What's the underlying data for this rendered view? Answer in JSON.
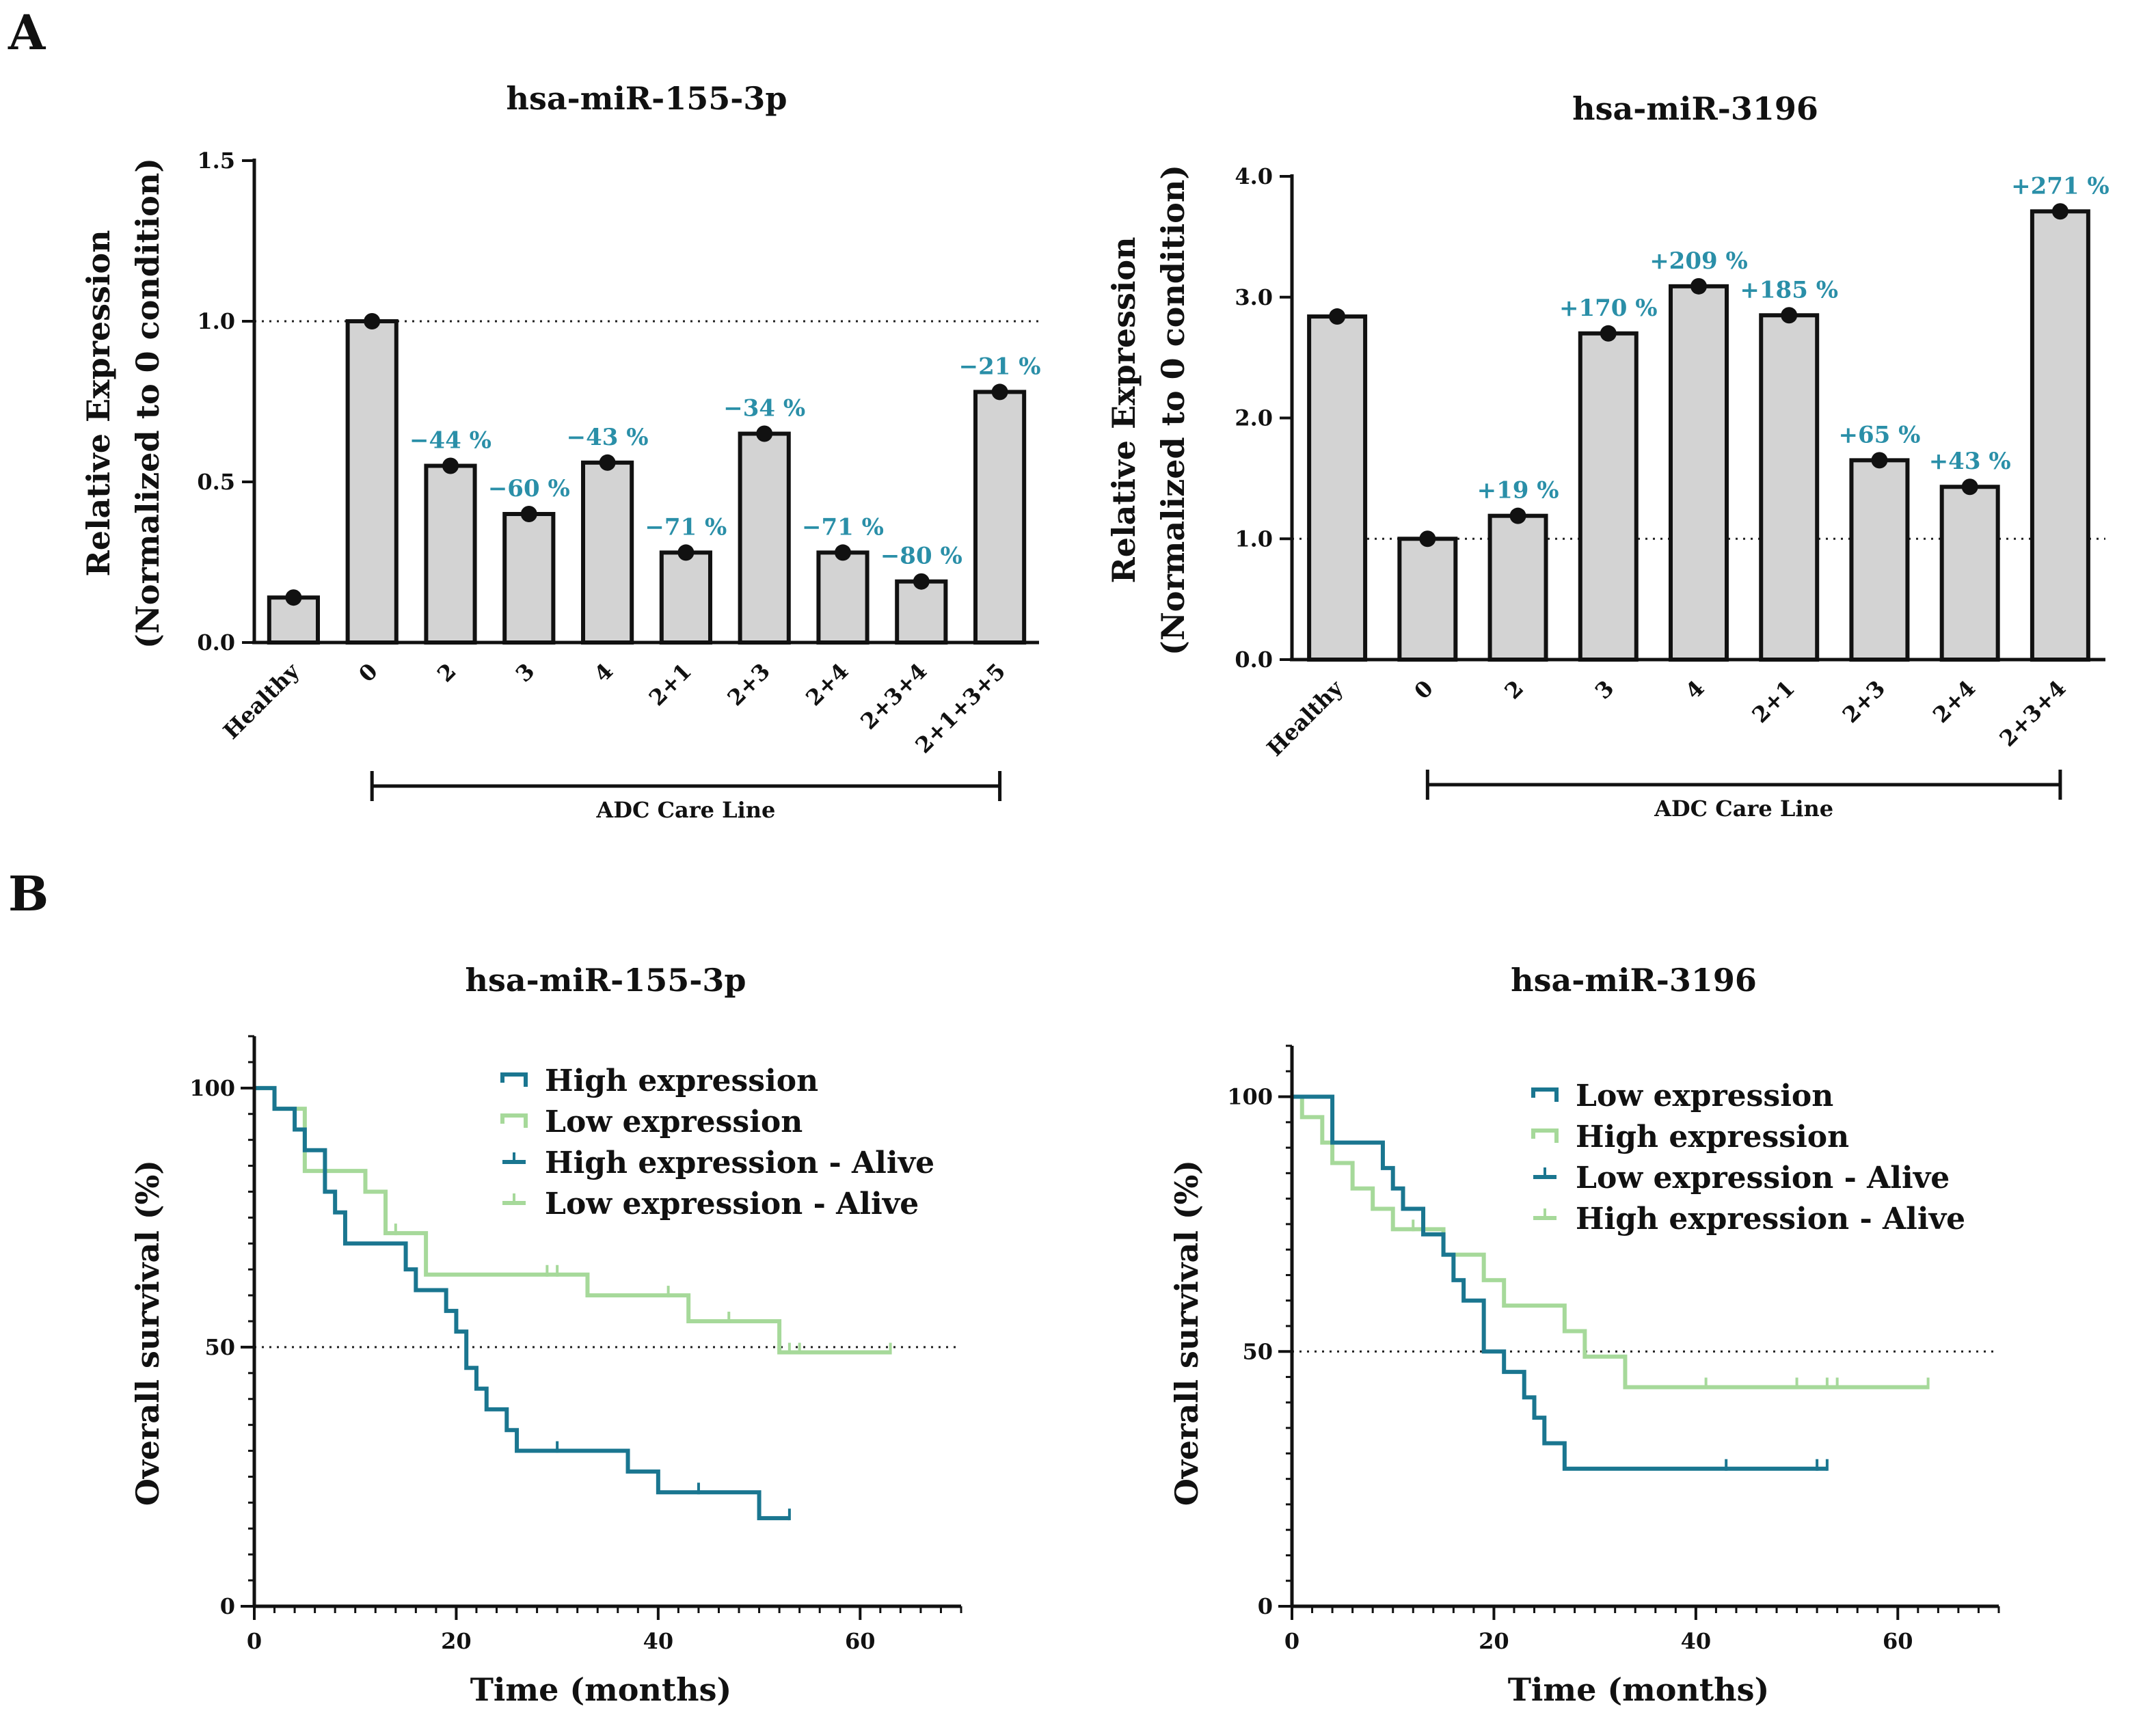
{
  "panels": {
    "a_label": "A",
    "b_label": "B"
  },
  "colors": {
    "high": "#1a7690",
    "low": "#a6d99a",
    "label": "#2a8fa8",
    "bar_fill": "#d3d3d3"
  },
  "chart_data": [
    {
      "id": "barA1",
      "type": "bar",
      "title": "hsa-miR-155-3p",
      "ylabel_line1": "Relative Expression",
      "ylabel_line2": "(Normalized to 0 condition)",
      "ylim": [
        0,
        1.5
      ],
      "yticks": [
        0,
        0.5,
        1.0,
        1.5
      ],
      "ytick_labels": [
        "0.0",
        "0.5",
        "1.0",
        "1.5"
      ],
      "reference_line": 1.0,
      "categories": [
        "Healthy",
        "0",
        "2",
        "3",
        "4",
        "2+1",
        "2+3",
        "2+4",
        "2+3+4",
        "2+1+3+5"
      ],
      "values": [
        0.14,
        1.0,
        0.55,
        0.4,
        0.56,
        0.28,
        0.65,
        0.28,
        0.19,
        0.78
      ],
      "labels": [
        "",
        "",
        "−44 %",
        "−60 %",
        "−43 %",
        "−71 %",
        "−34 %",
        "−71 %",
        "−80 %",
        "−21 %"
      ],
      "bracket_label": "ADC Care Line"
    },
    {
      "id": "barA2",
      "type": "bar",
      "title": "hsa-miR-3196",
      "ylabel_line1": "Relative Expression",
      "ylabel_line2": "(Normalized to 0 condition)",
      "ylim": [
        0,
        4.0
      ],
      "yticks": [
        0,
        1,
        2,
        3,
        4
      ],
      "ytick_labels": [
        "0.0",
        "1.0",
        "2.0",
        "3.0",
        "4.0"
      ],
      "reference_line": 1.0,
      "categories": [
        "Healthy",
        "0",
        "2",
        "3",
        "4",
        "2+1",
        "2+3",
        "2+4",
        "2+3+4"
      ],
      "values": [
        2.84,
        1.0,
        1.19,
        2.7,
        3.09,
        2.85,
        1.65,
        1.43,
        3.71
      ],
      "labels": [
        "",
        "",
        "+19 %",
        "+170 %",
        "+209 %",
        "+185 %",
        "+65 %",
        "+43 %",
        "+271 %"
      ],
      "bracket_label": "ADC Care Line"
    },
    {
      "id": "kmB1",
      "type": "line",
      "title": "hsa-miR-155-3p",
      "xlabel": "Time (months)",
      "ylabel": "Overall survival (%)",
      "xlim": [
        0,
        70
      ],
      "ylim": [
        0,
        110
      ],
      "xticks": [
        0,
        20,
        40,
        60
      ],
      "xtick_labels": [
        "0",
        "20",
        "40",
        "60"
      ],
      "yticks": [
        0,
        50,
        100
      ],
      "ytick_labels": [
        "0",
        "50",
        "100"
      ],
      "reference_line": 50,
      "series": [
        {
          "name": "High expression",
          "color": "#1a7690",
          "x": [
            0,
            2,
            4,
            5,
            7,
            8,
            9,
            15,
            16,
            19,
            20,
            21,
            22,
            23,
            25,
            26,
            27,
            37,
            40,
            50,
            53
          ],
          "y": [
            100,
            96,
            92,
            88,
            80,
            76,
            70,
            65,
            61,
            57,
            53,
            46,
            42,
            38,
            34,
            30,
            30,
            26,
            22,
            17,
            17
          ],
          "censor_x": [
            30,
            44,
            53
          ],
          "censor_y": [
            30,
            22,
            17
          ]
        },
        {
          "name": "Low expression",
          "color": "#a6d99a",
          "x": [
            0,
            2,
            5,
            11,
            13,
            17,
            33,
            43,
            52,
            63
          ],
          "y": [
            100,
            96,
            84,
            80,
            72,
            64,
            60,
            55,
            49,
            49
          ],
          "censor_x": [
            14,
            29,
            30,
            41,
            47,
            53,
            54,
            63
          ],
          "censor_y": [
            72,
            64,
            64,
            60,
            55,
            49,
            49,
            49
          ]
        }
      ],
      "legend": [
        "High expression",
        "Low expression",
        "High expression - Alive",
        "Low expression - Alive"
      ]
    },
    {
      "id": "kmB2",
      "type": "line",
      "title": "hsa-miR-3196",
      "xlabel": "Time (months)",
      "ylabel": "Overall survival (%)",
      "xlim": [
        0,
        70
      ],
      "ylim": [
        0,
        110
      ],
      "xticks": [
        0,
        20,
        40,
        60
      ],
      "xtick_labels": [
        "0",
        "20",
        "40",
        "60"
      ],
      "yticks": [
        0,
        50,
        100
      ],
      "ytick_labels": [
        "0",
        "50",
        "100"
      ],
      "reference_line": 50,
      "series": [
        {
          "name": "Low expression",
          "color": "#1a7690",
          "x": [
            0,
            4,
            9,
            10,
            11,
            13,
            15,
            16,
            17,
            19,
            21,
            23,
            24,
            25,
            27,
            53
          ],
          "y": [
            100,
            91,
            86,
            82,
            78,
            73,
            69,
            64,
            60,
            50,
            46,
            41,
            37,
            32,
            27,
            27
          ],
          "censor_x": [
            43,
            52,
            53
          ],
          "censor_y": [
            27,
            27,
            27
          ]
        },
        {
          "name": "High expression",
          "color": "#a6d99a",
          "x": [
            0,
            1,
            3,
            4,
            6,
            8,
            10,
            15,
            19,
            21,
            27,
            29,
            33,
            63
          ],
          "y": [
            100,
            96,
            91,
            87,
            82,
            78,
            74,
            69,
            64,
            59,
            54,
            49,
            43,
            43
          ],
          "censor_x": [
            8,
            12,
            29,
            41,
            50,
            53,
            54,
            63
          ],
          "censor_y": [
            78,
            74,
            49,
            43,
            43,
            43,
            43,
            43
          ]
        }
      ],
      "legend": [
        "Low expression",
        "High expression",
        "Low expression - Alive",
        "High expression - Alive"
      ]
    }
  ]
}
